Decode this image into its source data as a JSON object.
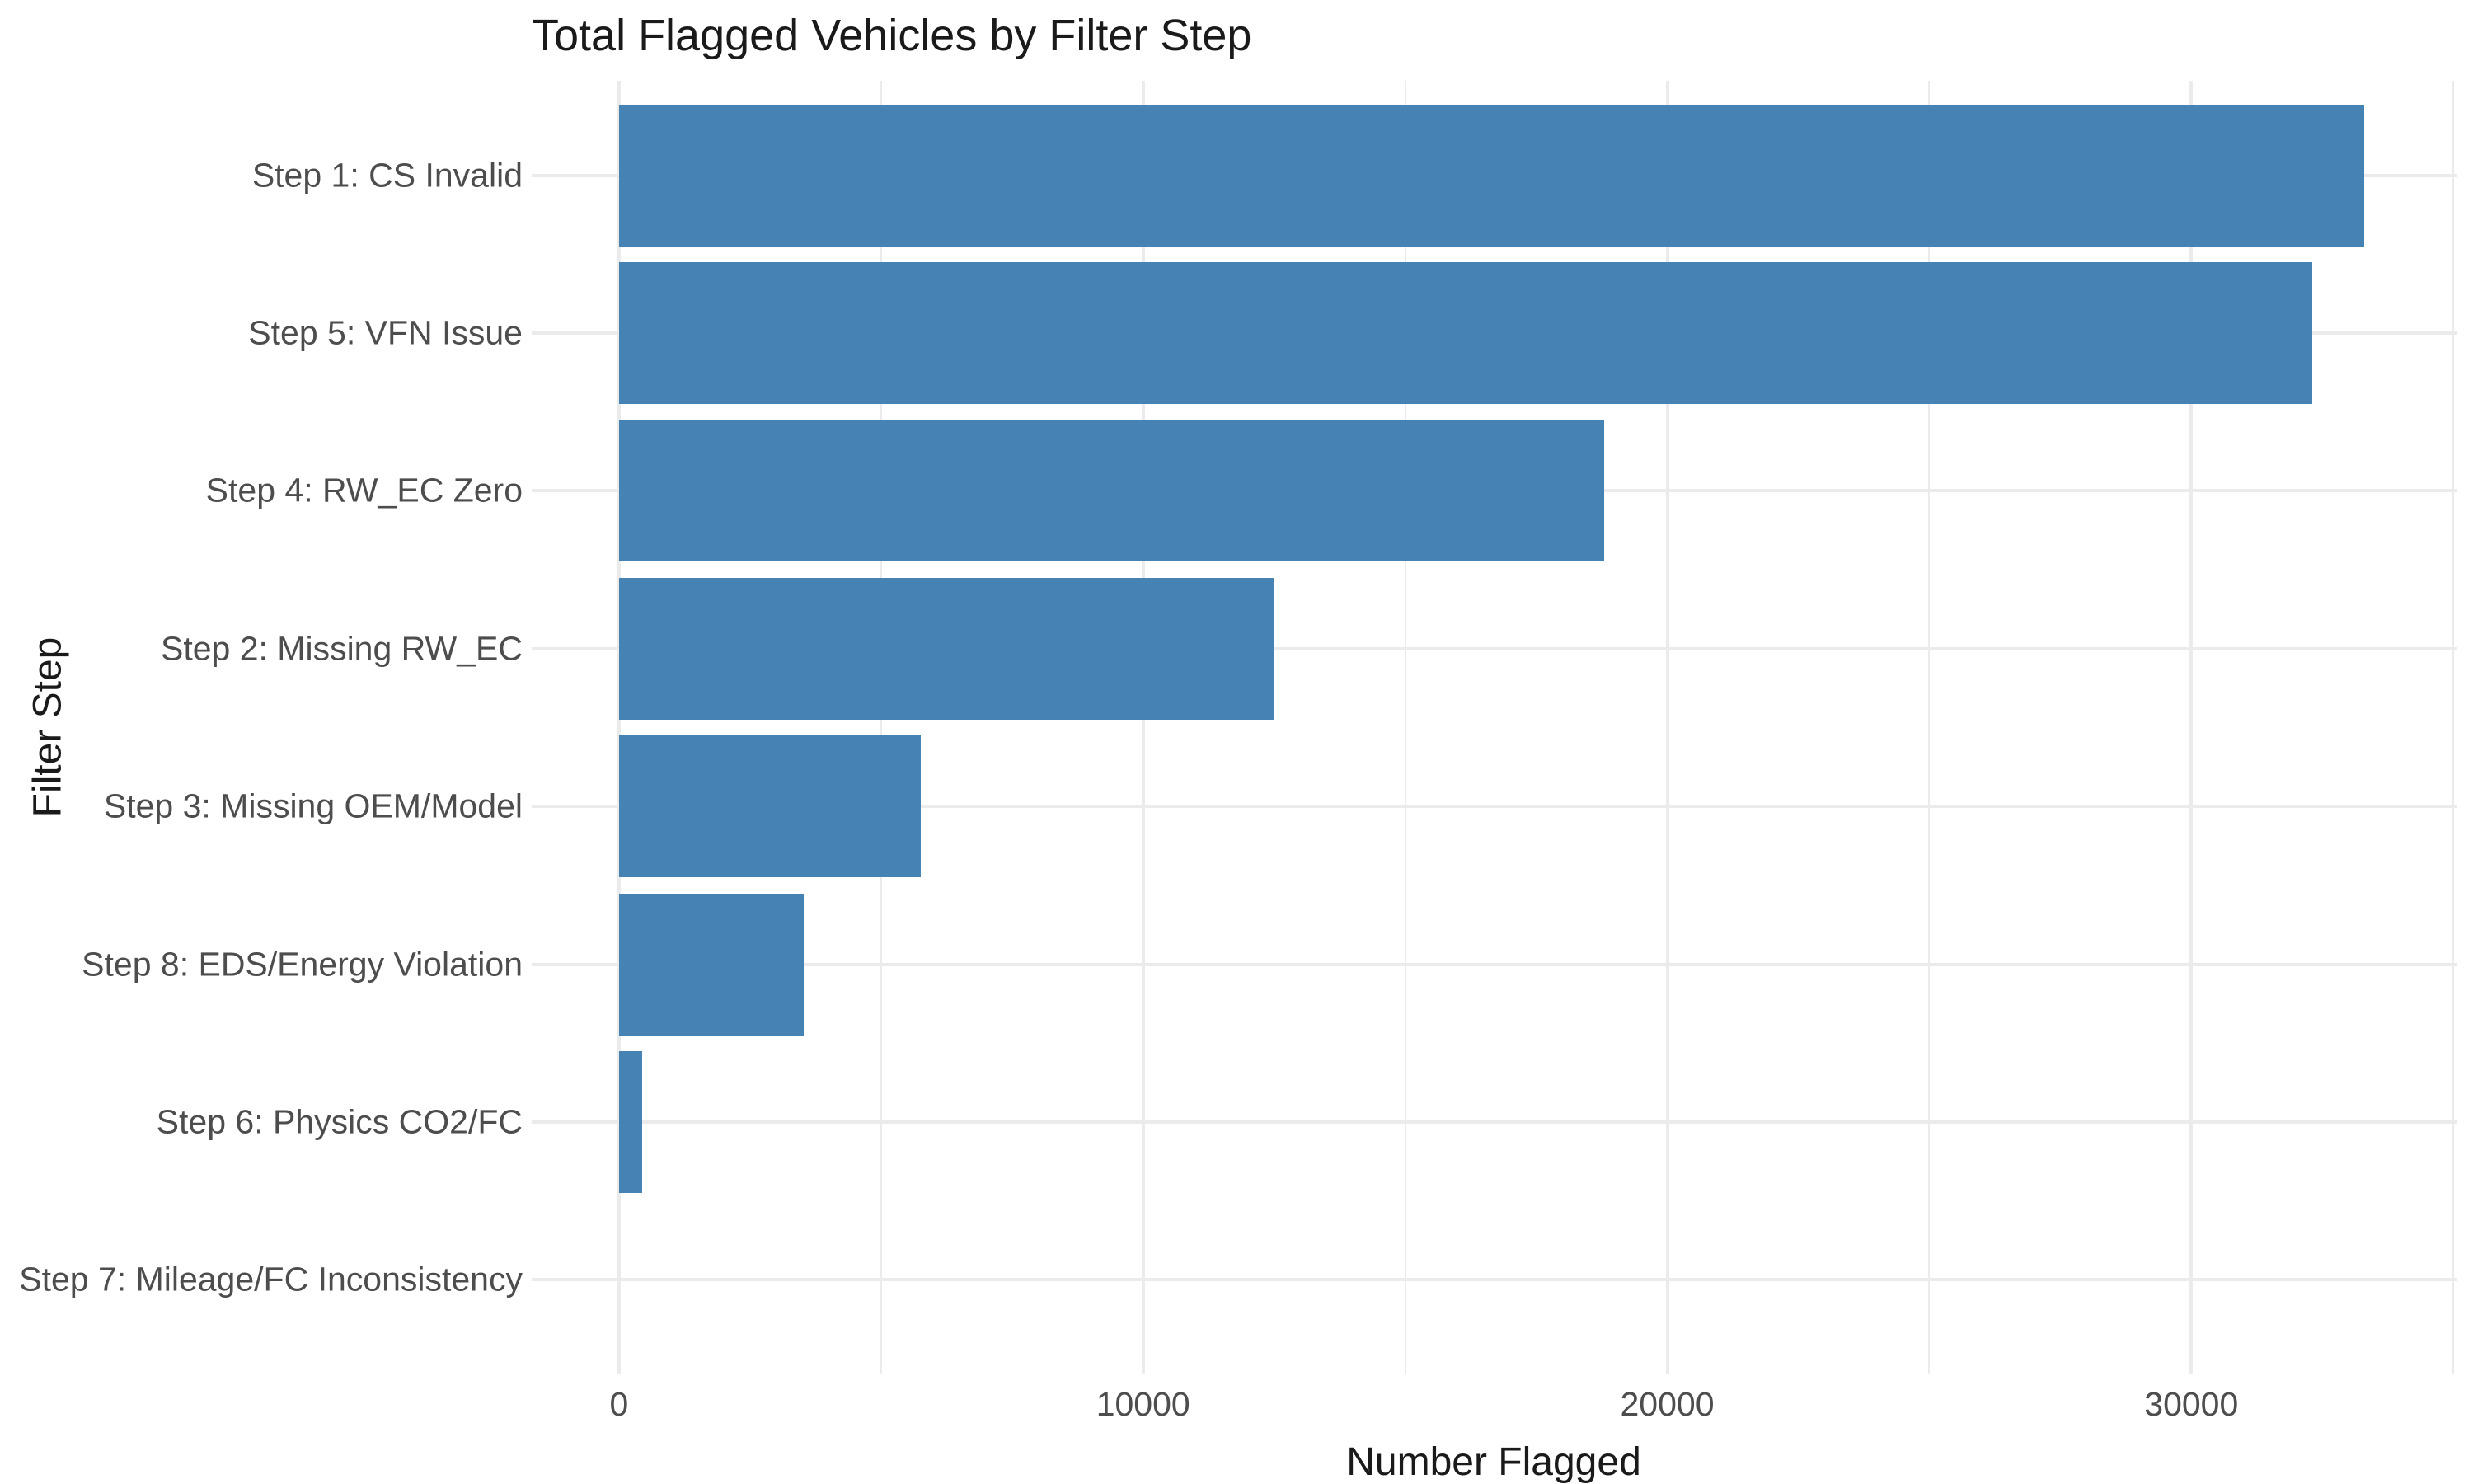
{
  "page": {
    "background": "#FFFFFF"
  },
  "chart_data": {
    "type": "bar",
    "orientation": "horizontal",
    "title": "Total Flagged Vehicles by Filter Step",
    "xlabel": "Number Flagged",
    "ylabel": "Filter Step",
    "categories": [
      "Step 1: CS Invalid",
      "Step 5: VFN Issue",
      "Step 4: RW_EC Zero",
      "Step 2: Missing RW_EC",
      "Step 3: Missing OEM/Model",
      "Step 8: EDS/Energy Violation",
      "Step 6: Physics CO2/FC",
      "Step 7: Mileage/FC Inconsistency"
    ],
    "values": [
      33300,
      32300,
      18800,
      12500,
      5760,
      3520,
      440,
      0
    ],
    "xlim": [
      -1666,
      35060
    ],
    "x_major_ticks": [
      0,
      10000,
      20000,
      30000
    ],
    "x_tick_labels": [
      "0",
      "10000",
      "20000",
      "30000"
    ],
    "x_minor_ticks": [
      5000,
      15000,
      25000,
      35000
    ],
    "legend_position": "none",
    "grid": true,
    "bar_color": "#4682B4",
    "grid_color": "#EBEBEB",
    "axis_text_color": "#4D4D4D",
    "title_color": "#1A1A1A",
    "background": "#FFFFFF"
  }
}
